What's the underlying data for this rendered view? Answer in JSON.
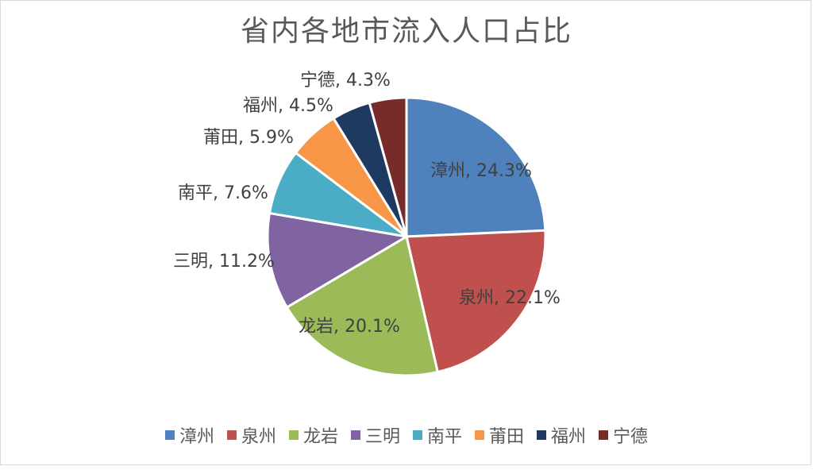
{
  "chart_data": {
    "type": "pie",
    "title": "省内各地市流入人口占比",
    "categories": [
      "漳州",
      "泉州",
      "龙岩",
      "三明",
      "南平",
      "莆田",
      "福州",
      "宁德"
    ],
    "values": [
      24.3,
      22.1,
      20.1,
      11.2,
      7.6,
      5.9,
      4.5,
      4.3
    ],
    "data_labels": [
      "漳州, 24.3%",
      "泉州, 22.1%",
      "龙岩, 20.1%",
      "三明, 11.2%",
      "南平, 7.6%",
      "莆田, 5.9%",
      "福州, 4.5%",
      "宁德, 4.3%"
    ],
    "colors": [
      "#4f81bd",
      "#c0504d",
      "#9bbb59",
      "#8064a2",
      "#4bacc6",
      "#f79646",
      "#1f3a60",
      "#772c2a"
    ],
    "legend_position": "bottom",
    "start_angle": "12 o'clock, clockwise"
  }
}
